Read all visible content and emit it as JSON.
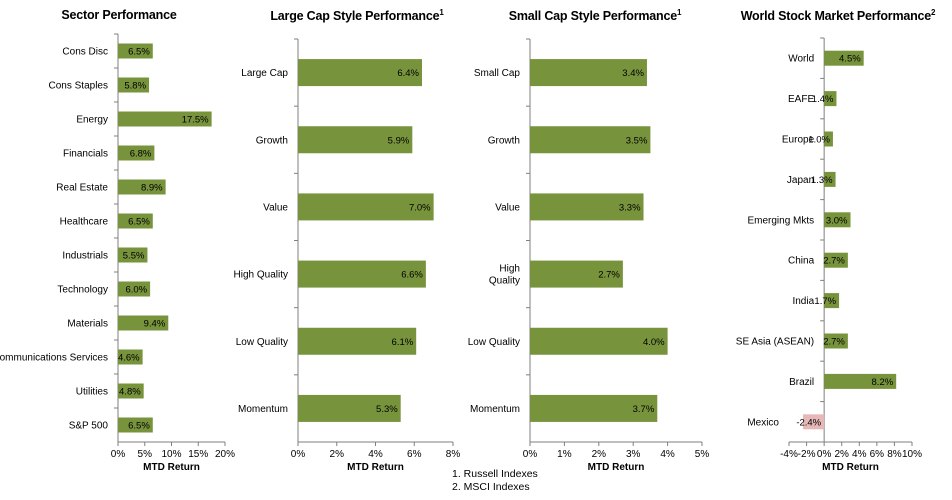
{
  "chart_data": [
    {
      "type": "bar",
      "orientation": "horizontal",
      "title": "Sector Performance",
      "title_sup": "",
      "xlabel": "MTD Return",
      "ylabel": "",
      "xlim": [
        0,
        20
      ],
      "xticks": [
        "0%",
        "5%",
        "10%",
        "15%",
        "20%"
      ],
      "xtick_values": [
        0,
        5,
        10,
        15,
        20
      ],
      "categories": [
        "Cons Disc",
        "Cons Staples",
        "Energy",
        "Financials",
        "Real Estate",
        "Healthcare",
        "Industrials",
        "Technology",
        "Materials",
        "Communications Services",
        "Utilities",
        "S&P 500"
      ],
      "values": [
        6.5,
        5.8,
        17.5,
        6.8,
        8.9,
        6.5,
        5.5,
        6.0,
        9.4,
        4.6,
        4.8,
        6.5
      ],
      "labels": [
        "6.5%",
        "5.8%",
        "17.5%",
        "6.8%",
        "8.9%",
        "6.5%",
        "5.5%",
        "6.0%",
        "9.4%",
        "4.6%",
        "4.8%",
        "6.5%"
      ],
      "grid": false,
      "bar_color": "#77933c",
      "neg_color": "#e6b9b8"
    },
    {
      "type": "bar",
      "orientation": "horizontal",
      "title": "Large Cap Style Performance",
      "title_sup": "1",
      "xlabel": "MTD Return",
      "ylabel": "",
      "xlim": [
        0,
        8
      ],
      "xticks": [
        "0%",
        "2%",
        "4%",
        "6%",
        "8%"
      ],
      "xtick_values": [
        0,
        2,
        4,
        6,
        8
      ],
      "categories": [
        "Large Cap",
        "Growth",
        "Value",
        "High Quality",
        "Low Quality",
        "Momentum"
      ],
      "values": [
        6.4,
        5.9,
        7.0,
        6.6,
        6.1,
        5.3
      ],
      "labels": [
        "6.4%",
        "5.9%",
        "7.0%",
        "6.6%",
        "6.1%",
        "5.3%"
      ],
      "grid": false,
      "bar_color": "#77933c",
      "neg_color": "#e6b9b8"
    },
    {
      "type": "bar",
      "orientation": "horizontal",
      "title": "Small Cap Style Performance",
      "title_sup": "1",
      "xlabel": "MTD Return",
      "ylabel": "",
      "xlim": [
        0,
        5
      ],
      "xticks": [
        "0%",
        "1%",
        "2%",
        "3%",
        "4%",
        "5%"
      ],
      "xtick_values": [
        0,
        1,
        2,
        3,
        4,
        5
      ],
      "categories": [
        "Small Cap",
        "Growth",
        "Value",
        "High\nQuality",
        "Low Quality",
        "Momentum"
      ],
      "values": [
        3.4,
        3.5,
        3.3,
        2.7,
        4.0,
        3.7
      ],
      "labels": [
        "3.4%",
        "3.5%",
        "3.3%",
        "2.7%",
        "4.0%",
        "3.7%"
      ],
      "grid": false,
      "bar_color": "#77933c",
      "neg_color": "#e6b9b8"
    },
    {
      "type": "bar",
      "orientation": "horizontal",
      "title": "World Stock Market Performance",
      "title_sup": "2",
      "xlabel": "MTD Return",
      "ylabel": "",
      "xlim": [
        -4,
        10
      ],
      "xticks": [
        "-4%",
        "-2%",
        "0%",
        "2%",
        "4%",
        "6%",
        "8%",
        "10%"
      ],
      "xtick_values": [
        -4,
        -2,
        0,
        2,
        4,
        6,
        8,
        10
      ],
      "categories": [
        "World",
        "EAFE",
        "Europe",
        "Japan",
        "Emerging Mkts",
        "China",
        "India",
        "SE Asia (ASEAN)",
        "Brazil",
        "Mexico"
      ],
      "values": [
        4.5,
        1.4,
        1.0,
        1.3,
        3.0,
        2.7,
        1.7,
        2.7,
        8.2,
        -2.4
      ],
      "labels": [
        "4.5%",
        "1.4%",
        "1.0%",
        "1.3%",
        "3.0%",
        "2.7%",
        "1.7%",
        "2.7%",
        "8.2%",
        "-2.4%"
      ],
      "grid": false,
      "bar_color": "#77933c",
      "neg_color": "#e6b9b8"
    }
  ],
  "footnotes": [
    "1. Russell Indexes",
    "2. MSCI Indexes"
  ]
}
